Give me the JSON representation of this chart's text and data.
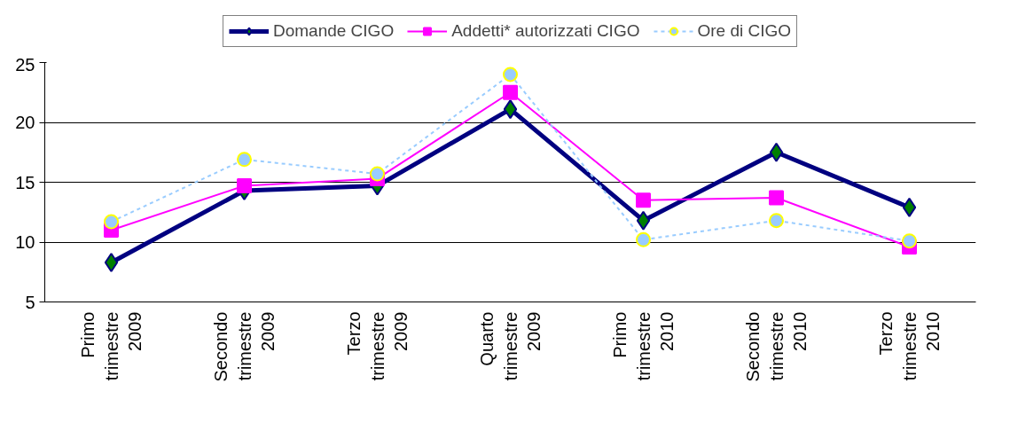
{
  "chart_data": {
    "type": "line",
    "categories": [
      "Primo trimestre 2009",
      "Secondo trimestre 2009",
      "Terzo trimestre 2009",
      "Quarto trimestre 2009",
      "Primo trimestre 2010",
      "Secondo trimestre 2010",
      "Terzo trimestre 2010"
    ],
    "series": [
      {
        "name": "Domande CIGO",
        "color": "#000080",
        "marker": "diamond",
        "line_style": "solid",
        "values": [
          8.3,
          14.3,
          14.7,
          21.1,
          11.8,
          17.5,
          12.9
        ]
      },
      {
        "name": "Addetti* autorizzati CIGO",
        "color": "#ff00ff",
        "marker": "square",
        "line_style": "solid",
        "values": [
          11.0,
          14.7,
          15.3,
          22.5,
          13.5,
          13.7,
          9.6
        ]
      },
      {
        "name": "Ore di CIGO",
        "color": "#99ccff",
        "marker": "circle",
        "line_style": "dashed",
        "values": [
          11.7,
          16.9,
          15.7,
          24.0,
          10.2,
          11.8,
          10.1
        ]
      }
    ],
    "ylim": [
      5,
      25
    ],
    "yticks": [
      5,
      10,
      15,
      20,
      25
    ],
    "grid": "y",
    "legend": "top"
  }
}
